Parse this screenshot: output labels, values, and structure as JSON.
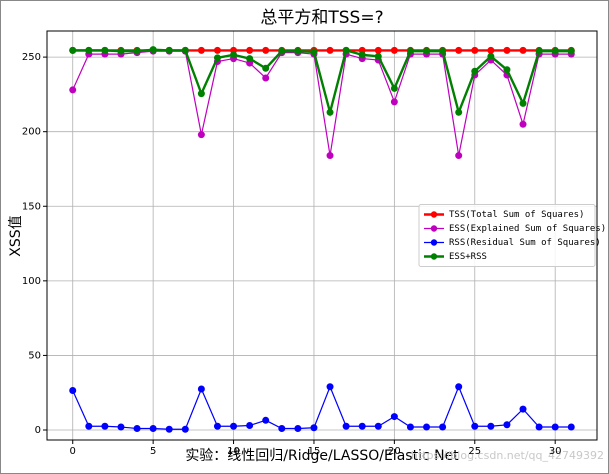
{
  "chart_data": {
    "type": "line",
    "title": "总平方和TSS=?",
    "x_label": "实验：线性回归/Ridge/LASSO/Elastic Net",
    "y_label": "XSS值",
    "x": [
      0,
      1,
      2,
      3,
      4,
      5,
      6,
      7,
      8,
      9,
      10,
      11,
      12,
      13,
      14,
      15,
      16,
      17,
      18,
      19,
      20,
      21,
      22,
      23,
      24,
      25,
      26,
      27,
      28,
      29,
      30,
      31
    ],
    "series": [
      {
        "name": "TSS(Total Sum of Squares)",
        "color": "#ff0000",
        "width": 2,
        "values": [
          254.5,
          254.5,
          254.5,
          254.5,
          254.5,
          254.5,
          254.5,
          254.5,
          254.5,
          254.5,
          254.5,
          254.5,
          254.5,
          254.5,
          254.5,
          254.5,
          254.5,
          254.5,
          254.5,
          254.5,
          254.5,
          254.5,
          254.5,
          254.5,
          254.5,
          254.5,
          254.5,
          254.5,
          254.5,
          254.5,
          254.5,
          254.5
        ]
      },
      {
        "name": "ESS(Explained Sum of Squares)",
        "color": "#bf00bf",
        "width": 1,
        "values": [
          228,
          252,
          252,
          252,
          253,
          254,
          254,
          254,
          198,
          247,
          249,
          246,
          236,
          253,
          253,
          252,
          184,
          252,
          249,
          248,
          220,
          252,
          252,
          252,
          184,
          238,
          248,
          238,
          205,
          252,
          252,
          252
        ]
      },
      {
        "name": "RSS(Residual Sum of Squares)",
        "color": "#0000ff",
        "width": 1,
        "values": [
          26.5,
          2.5,
          2.5,
          2,
          1,
          1,
          0.5,
          0.5,
          27.5,
          2.5,
          2.5,
          3,
          6.5,
          1,
          1,
          1.5,
          29,
          2.5,
          2.5,
          2.5,
          9,
          2,
          2,
          2,
          29,
          2.5,
          2.5,
          3.5,
          14,
          2,
          2,
          2
        ]
      },
      {
        "name": "ESS+RSS",
        "color": "#008000",
        "width": 2,
        "values": [
          254.5,
          254.5,
          254.5,
          254,
          254,
          255,
          254.5,
          254.5,
          225.5,
          249.5,
          251.5,
          249,
          242.5,
          254,
          254,
          253.5,
          213,
          254.5,
          251.5,
          250.5,
          229,
          254,
          254,
          254,
          213,
          240.5,
          250.5,
          241.5,
          219,
          254,
          254,
          254
        ]
      }
    ],
    "xlim": [
      -1.6,
      32.6
    ],
    "ylim": [
      -6.7,
      267.5
    ],
    "xticks": [
      0,
      5,
      10,
      15,
      20,
      25,
      30
    ],
    "yticks": [
      0,
      50,
      100,
      150,
      200,
      250
    ],
    "grid": true,
    "legend": "center right",
    "watermark": "https://blog.csdn.net/qq_42749392"
  }
}
